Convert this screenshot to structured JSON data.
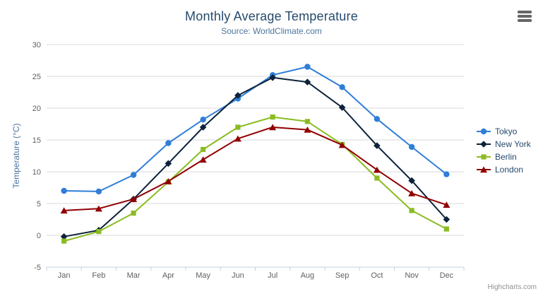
{
  "chart": {
    "credits_label": "Highcharts.com",
    "export_menu_icon": "hamburger-menu-icon"
  },
  "chart_data": {
    "type": "line",
    "title": "Monthly Average Temperature",
    "subtitle": "Source: WorldClimate.com",
    "xlabel": "",
    "ylabel": "Temperature (°C)",
    "categories": [
      "Jan",
      "Feb",
      "Mar",
      "Apr",
      "May",
      "Jun",
      "Jul",
      "Aug",
      "Sep",
      "Oct",
      "Nov",
      "Dec"
    ],
    "series": [
      {
        "name": "Tokyo",
        "color": "#2f7ed8",
        "marker": "circle",
        "values": [
          7.0,
          6.9,
          9.5,
          14.5,
          18.2,
          21.5,
          25.2,
          26.5,
          23.3,
          18.3,
          13.9,
          9.6
        ]
      },
      {
        "name": "New York",
        "color": "#0d233a",
        "marker": "diamond",
        "values": [
          -0.2,
          0.8,
          5.7,
          11.3,
          17.0,
          22.0,
          24.8,
          24.1,
          20.1,
          14.1,
          8.6,
          2.5
        ]
      },
      {
        "name": "Berlin",
        "color": "#8bbc21",
        "marker": "square",
        "values": [
          -0.9,
          0.6,
          3.5,
          8.4,
          13.5,
          17.0,
          18.6,
          17.9,
          14.3,
          9.0,
          3.9,
          1.0
        ]
      },
      {
        "name": "London",
        "color": "#910000",
        "marker": "triangle",
        "values": [
          3.9,
          4.2,
          5.7,
          8.5,
          11.9,
          15.2,
          17.0,
          16.6,
          14.2,
          10.3,
          6.6,
          4.8
        ]
      }
    ],
    "ylim": [
      -5,
      30
    ],
    "ytick_step": 5,
    "grid": "horizontal",
    "legend_position": "right",
    "colors": {
      "title_text": "#274b6d",
      "subtitle_text": "#4d759e",
      "axis_title_text": "#4d759e",
      "tick_label_text": "#606060",
      "gridline": "#d8d8d8",
      "axis_line": "#c0d0e0",
      "legend_text": "#274b6d",
      "credits_text": "#909090",
      "menu_icon": "#666666"
    }
  }
}
